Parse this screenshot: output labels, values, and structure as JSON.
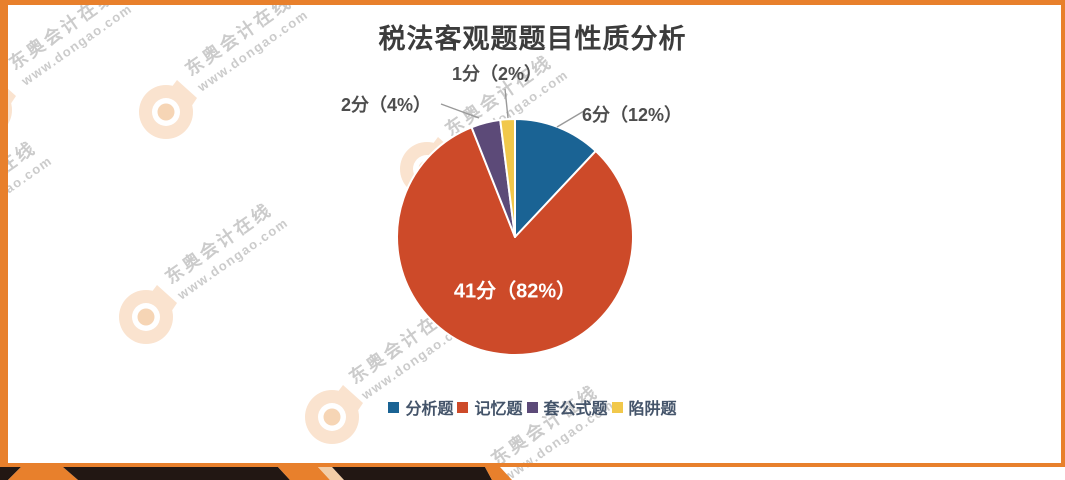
{
  "title": "税法客观题题目性质分析",
  "watermark": {
    "brand": "东奥会计在线",
    "url": "www.dongao.com"
  },
  "colors": {
    "accent_orange": "#e8802c",
    "band_black": "#221713",
    "band_fade": "#f2cda6",
    "leader_gray": "#999999",
    "title_gray": "#3c3c3c",
    "callout_gray": "#4d4d4d",
    "legend_text": "#44546a",
    "wm_logo_fill": "#fae3cf",
    "wm_logo_dot": "#f6d5b5"
  },
  "chart_data": {
    "type": "pie",
    "title": "税法客观题题目性质分析",
    "unit": "分",
    "total_points": 50,
    "start_angle_deg": -90,
    "direction": "clockwise",
    "legend_position": "bottom",
    "slices": [
      {
        "label": "分析题",
        "value": 6,
        "percent": 12,
        "color": "#1a6394",
        "display": "6分（12%）",
        "label_placement": "outside"
      },
      {
        "label": "记忆题",
        "value": 41,
        "percent": 82,
        "color": "#cd4a29",
        "display": "41分（82%）",
        "label_placement": "inside"
      },
      {
        "label": "套公式题",
        "value": 2,
        "percent": 4,
        "color": "#5c4a78",
        "display": "2分（4%）",
        "label_placement": "outside"
      },
      {
        "label": "陷阱题",
        "value": 1,
        "percent": 2,
        "color": "#f1c84b",
        "display": "1分（2%）",
        "label_placement": "outside"
      }
    ]
  }
}
